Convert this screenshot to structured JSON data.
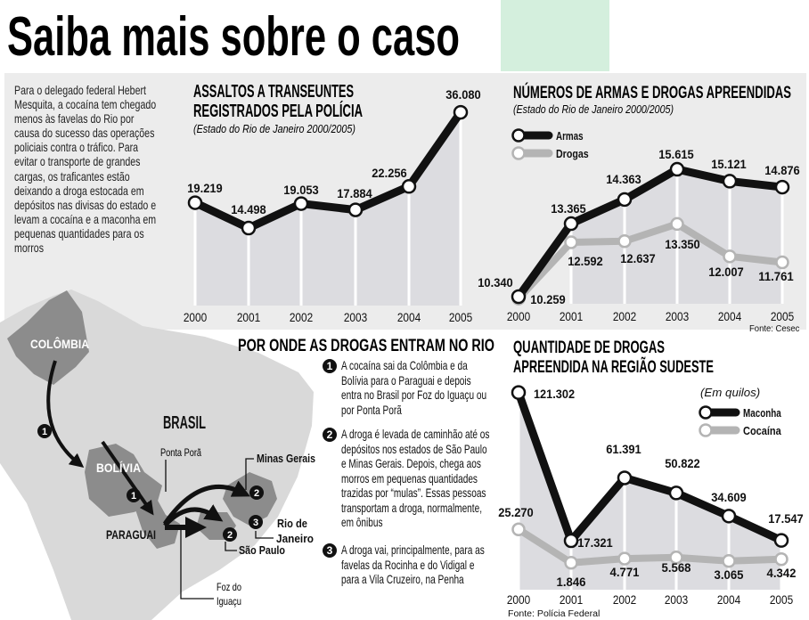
{
  "headline": "Saiba mais sobre o caso",
  "colors": {
    "accent_block": "#d4efdd",
    "panel": "#ececec",
    "series_dark": "#111111",
    "series_light": "#b4b4b4",
    "area_fill": "#dcdce0",
    "map_land": "#d9d9d9",
    "map_country": "#8c8c8c"
  },
  "intro": "Para o delegado federal Hebert Mesquita, a cocaína tem chegado menos às favelas do Rio por causa do sucesso das operações policiais contra o tráfico. Para evitar o transporte de grandes cargas, os traficantes estão deixando a droga estocada em depósitos nas divisas do estado e levam a cocaína e a maconha em pequenas quantidades para os morros",
  "chart_data": [
    {
      "type": "line",
      "title": "ASSALTOS A TRANSEUNTES REGISTRADOS PELA POLÍCIA",
      "title_lines": [
        "ASSALTOS A TRANSEUNTES",
        "REGISTRADOS PELA POLÍCIA"
      ],
      "subtitle": "(Estado do Rio de Janeiro 2000/2005)",
      "categories": [
        "2000",
        "2001",
        "2002",
        "2003",
        "2004",
        "2005"
      ],
      "series": [
        {
          "values": [
            19219,
            14498,
            19053,
            17884,
            22256,
            36080
          ],
          "labels": [
            "19.219",
            "14.498",
            "19.053",
            "17.884",
            "22.256",
            "36.080"
          ]
        }
      ]
    },
    {
      "type": "line",
      "title": "NÚMEROS DE ARMAS E DROGAS APREENDIDAS",
      "subtitle": "(Estado do Rio de Janeiro 2000/2005)",
      "source": "Fonte: Cesec",
      "legend": "top-left",
      "categories": [
        "2000",
        "2001",
        "2002",
        "2003",
        "2004",
        "2005"
      ],
      "series": [
        {
          "name": "Armas",
          "values": [
            10340,
            13365,
            14363,
            15615,
            15121,
            14876
          ],
          "labels": [
            "10.340",
            "13.365",
            "14.363",
            "15.615",
            "15.121",
            "14.876"
          ]
        },
        {
          "name": "Drogas",
          "values": [
            10259,
            12592,
            12637,
            13350,
            12007,
            11761
          ],
          "labels": [
            "10.259",
            "12.592",
            "12.637",
            "13.350",
            "12.007",
            "11.761"
          ]
        }
      ]
    },
    {
      "type": "line",
      "title": "QUANTIDADE DE DROGAS APREENDIDA NA REGIÃO SUDESTE",
      "title_lines": [
        "QUANTIDADE DE DROGAS",
        "APREENDIDA NA REGIÃO SUDESTE"
      ],
      "unit": "(Em quilos)",
      "source": "Fonte: Polícia Federal",
      "legend": "top-right",
      "categories": [
        "2000",
        "2001",
        "2002",
        "2003",
        "2004",
        "2005"
      ],
      "series": [
        {
          "name": "Maconha",
          "values": [
            121302,
            17321,
            61391,
            50822,
            34609,
            17547
          ],
          "labels": [
            "121.302",
            "17.321",
            "61.391",
            "50.822",
            "34.609",
            "17.547"
          ]
        },
        {
          "name": "Cocaína",
          "values": [
            25270,
            1846,
            4771,
            5568,
            3065,
            4342
          ],
          "labels": [
            "25.270",
            "1.846",
            "4.771",
            "5.568",
            "3.065",
            "4.342"
          ]
        }
      ]
    }
  ],
  "map": {
    "title": "POR ONDE AS DROGAS ENTRAM NO RIO",
    "labels": {
      "colombia": "COLÔMBIA",
      "bolivia": "BOLÍVIA",
      "paraguai": "PARAGUAI",
      "brasil": "BRASIL",
      "ponta_pora": "Ponta Porã",
      "foz1": "Foz do",
      "foz2": "Iguaçu",
      "sao_paulo": "São Paulo",
      "minas": "Minas Gerais",
      "rio1": "Rio de",
      "rio2": "Janeiro"
    },
    "steps": [
      {
        "num": "1",
        "text": "A cocaína sai da Colômbia e da Bolívia para o Paraguai e depois entra no Brasil por Foz do Iguaçu ou por Ponta Porã"
      },
      {
        "num": "2",
        "text": "A droga é levada de caminhão até os depósitos nos estados de São Paulo e Minas Gerais. Depois, chega aos morros em pequenas quantidades trazidas por “mulas”. Essas pessoas transportam a droga, normalmente, em ônibus"
      },
      {
        "num": "3",
        "text": "A droga vai, principalmente, para as favelas da Rocinha e do Vidigal e para a Vila Cruzeiro, na Penha"
      }
    ]
  }
}
